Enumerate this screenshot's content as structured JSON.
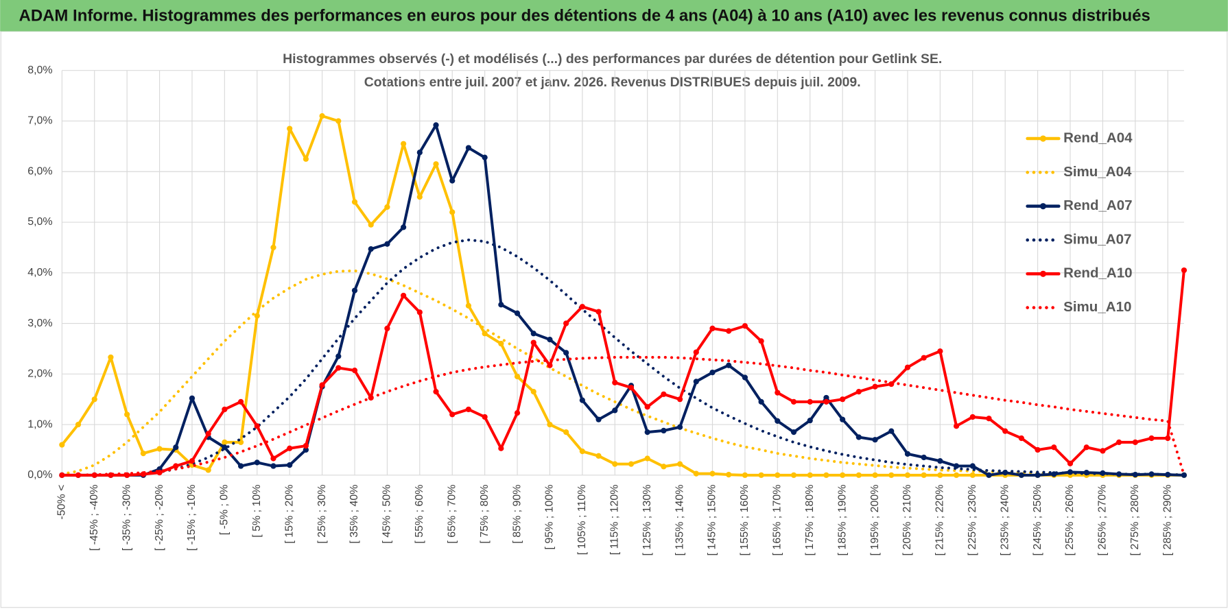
{
  "header": {
    "title": "ADAM Informe. Histogrammes des performances en euros pour des détentions de 4 ans (A04) à 10 ans (A10) avec les revenus connus distribués"
  },
  "chart_data": {
    "type": "line",
    "title": "Histogrammes observés (-) et modélisés (...) des performances par durées de détention pour Getlink SE.",
    "subtitle": "Cotations entre juil. 2007 et janv. 2026. Revenus DISTRIBUES depuis juil. 2009.",
    "categories": [
      "-50% <",
      null,
      "[ -45% ; -40%",
      null,
      "[ -35% ; -30%",
      null,
      "[ -25% ; -20%",
      null,
      "[ -15% ; -10%",
      null,
      "[ -5% ; 0%",
      null,
      "[ 5% ; 10%",
      null,
      "[ 15% ; 20%",
      null,
      "[ 25% ; 30%",
      null,
      "[ 35% ; 40%",
      null,
      "[ 45% ; 50%",
      null,
      "[ 55% ; 60%",
      null,
      "[ 65% ; 70%",
      null,
      "[ 75% ; 80%",
      null,
      "[ 85% ; 90%",
      null,
      "[ 95% ; 100%",
      null,
      "[ 105% ; 110%",
      null,
      "[ 115% ; 120%",
      null,
      "[ 125% ; 130%",
      null,
      "[ 135% ; 140%",
      null,
      "[ 145% ; 150%",
      null,
      "[ 155% ; 160%",
      null,
      "[ 165% ; 170%",
      null,
      "[ 175% ; 180%",
      null,
      "[ 185% ; 190%",
      null,
      "[ 195% ; 200%",
      null,
      "[ 205% ; 210%",
      null,
      "[ 215% ; 220%",
      null,
      "[ 225% ; 230%",
      null,
      "[ 235% ; 240%",
      null,
      "[ 245% ; 250%",
      null,
      "[ 255% ; 260%",
      null,
      "[ 265% ; 270%",
      null,
      "[ 275% ; 280%",
      null,
      "[ 285% ; 290%",
      null
    ],
    "ylim": [
      0,
      8
    ],
    "yticks": [
      {
        "value": 0,
        "label": "0,0%"
      },
      {
        "value": 1,
        "label": "1,0%"
      },
      {
        "value": 2,
        "label": "2,0%"
      },
      {
        "value": 3,
        "label": "3,0%"
      },
      {
        "value": 4,
        "label": "4,0%"
      },
      {
        "value": 5,
        "label": "5,0%"
      },
      {
        "value": 6,
        "label": "6,0%"
      },
      {
        "value": 7,
        "label": "7,0%"
      },
      {
        "value": 8,
        "label": "8,0%"
      }
    ],
    "grid": true,
    "legend": "right",
    "series": [
      {
        "name": "Rend_A04",
        "color": "#FFC000",
        "line_style": "solid",
        "markers": true,
        "values": [
          0.6,
          1.0,
          1.5,
          2.33,
          1.2,
          0.43,
          0.52,
          0.5,
          0.2,
          0.1,
          0.65,
          0.65,
          3.15,
          4.5,
          6.85,
          6.25,
          7.1,
          7.0,
          5.4,
          4.95,
          5.3,
          6.55,
          5.5,
          6.15,
          5.2,
          3.35,
          2.8,
          2.6,
          1.95,
          1.65,
          1.0,
          0.85,
          0.47,
          0.38,
          0.22,
          0.22,
          0.33,
          0.17,
          0.22,
          0.03,
          0.03,
          0.01,
          0,
          0,
          0,
          0,
          0,
          0,
          0,
          0,
          0,
          0,
          0,
          0,
          0,
          0,
          0,
          0,
          0,
          0,
          0,
          0,
          0,
          0,
          0,
          0,
          0,
          0,
          0,
          0
        ]
      },
      {
        "name": "Simu_A04",
        "color": "#FFC000",
        "line_style": "dotted",
        "markers": false,
        "values": [
          0.02,
          0.08,
          0.2,
          0.4,
          0.65,
          0.95,
          1.25,
          1.6,
          1.95,
          2.3,
          2.65,
          2.95,
          3.25,
          3.5,
          3.7,
          3.87,
          3.97,
          4.03,
          4.04,
          3.98,
          3.88,
          3.75,
          3.6,
          3.45,
          3.28,
          3.1,
          2.9,
          2.7,
          2.5,
          2.32,
          2.12,
          1.95,
          1.77,
          1.6,
          1.45,
          1.3,
          1.17,
          1.05,
          0.93,
          0.83,
          0.73,
          0.64,
          0.56,
          0.5,
          0.43,
          0.38,
          0.33,
          0.29,
          0.25,
          0.22,
          0.19,
          0.16,
          0.14,
          0.12,
          0.1,
          0.09,
          0.08,
          0.07,
          0.06,
          0.05,
          0.04,
          0.04,
          0.03,
          0.03,
          0.02,
          0.02,
          0.02,
          0.01,
          0.01,
          0.01
        ]
      },
      {
        "name": "Rend_A07",
        "color": "#002060",
        "line_style": "solid",
        "markers": true,
        "values": [
          0,
          0,
          0,
          0,
          0,
          0,
          0.12,
          0.55,
          1.52,
          0.75,
          0.55,
          0.18,
          0.25,
          0.18,
          0.2,
          0.5,
          1.75,
          2.35,
          3.65,
          4.47,
          4.57,
          4.9,
          6.38,
          6.92,
          5.82,
          6.47,
          6.28,
          3.37,
          3.2,
          2.8,
          2.68,
          2.42,
          1.48,
          1.1,
          1.28,
          1.77,
          0.85,
          0.88,
          0.95,
          1.85,
          2.03,
          2.17,
          1.93,
          1.45,
          1.07,
          0.85,
          1.08,
          1.53,
          1.1,
          0.75,
          0.7,
          0.87,
          0.42,
          0.35,
          0.28,
          0.18,
          0.18,
          0,
          0.05,
          0,
          0,
          0.02,
          0.06,
          0.05,
          0.04,
          0.02,
          0.01,
          0.02,
          0.01,
          0
        ]
      },
      {
        "name": "Simu_A07",
        "color": "#002060",
        "line_style": "dotted",
        "markers": false,
        "values": [
          0,
          0,
          0,
          0.01,
          0.01,
          0.02,
          0.06,
          0.12,
          0.22,
          0.35,
          0.52,
          0.72,
          0.95,
          1.25,
          1.55,
          1.9,
          2.3,
          2.7,
          3.1,
          3.45,
          3.8,
          4.08,
          4.3,
          4.48,
          4.6,
          4.65,
          4.62,
          4.5,
          4.32,
          4.1,
          3.85,
          3.57,
          3.28,
          3.0,
          2.72,
          2.45,
          2.2,
          1.95,
          1.72,
          1.52,
          1.33,
          1.17,
          1.02,
          0.88,
          0.76,
          0.65,
          0.56,
          0.48,
          0.41,
          0.35,
          0.3,
          0.25,
          0.21,
          0.18,
          0.15,
          0.13,
          0.11,
          0.09,
          0.08,
          0.07,
          0.06,
          0.05,
          0.04,
          0.03,
          0.03,
          0.02,
          0.02,
          0.02,
          0.01,
          0.01
        ]
      },
      {
        "name": "Rend_A10",
        "color": "#FF0000",
        "line_style": "solid",
        "markers": true,
        "values": [
          0,
          0,
          0,
          0,
          0,
          0.02,
          0.05,
          0.18,
          0.28,
          0.82,
          1.3,
          1.45,
          0.97,
          0.33,
          0.53,
          0.58,
          1.78,
          2.12,
          2.07,
          1.53,
          2.9,
          3.55,
          3.22,
          1.65,
          1.2,
          1.3,
          1.15,
          0.53,
          1.23,
          2.62,
          2.17,
          3.0,
          3.33,
          3.23,
          1.83,
          1.73,
          1.35,
          1.6,
          1.5,
          2.43,
          2.9,
          2.85,
          2.95,
          2.65,
          1.63,
          1.45,
          1.45,
          1.45,
          1.5,
          1.65,
          1.75,
          1.8,
          2.13,
          2.32,
          2.45,
          0.97,
          1.15,
          1.12,
          0.87,
          0.73,
          0.5,
          0.55,
          0.23,
          0.55,
          0.48,
          0.65,
          0.65,
          0.73,
          0.73,
          4.05
        ]
      },
      {
        "name": "Simu_A10",
        "color": "#FF0000",
        "line_style": "dotted",
        "markers": false,
        "values": [
          0,
          0,
          0.01,
          0.02,
          0.03,
          0.05,
          0.08,
          0.12,
          0.18,
          0.26,
          0.35,
          0.46,
          0.58,
          0.71,
          0.85,
          0.99,
          1.13,
          1.27,
          1.4,
          1.53,
          1.65,
          1.76,
          1.86,
          1.95,
          2.03,
          2.09,
          2.14,
          2.18,
          2.22,
          2.25,
          2.27,
          2.29,
          2.31,
          2.32,
          2.33,
          2.33,
          2.33,
          2.33,
          2.32,
          2.3,
          2.28,
          2.26,
          2.23,
          2.2,
          2.16,
          2.12,
          2.07,
          2.03,
          1.98,
          1.93,
          1.88,
          1.83,
          1.78,
          1.73,
          1.68,
          1.63,
          1.58,
          1.53,
          1.48,
          1.44,
          1.39,
          1.35,
          1.3,
          1.26,
          1.22,
          1.18,
          1.14,
          1.1,
          1.07,
          0
        ]
      }
    ]
  }
}
